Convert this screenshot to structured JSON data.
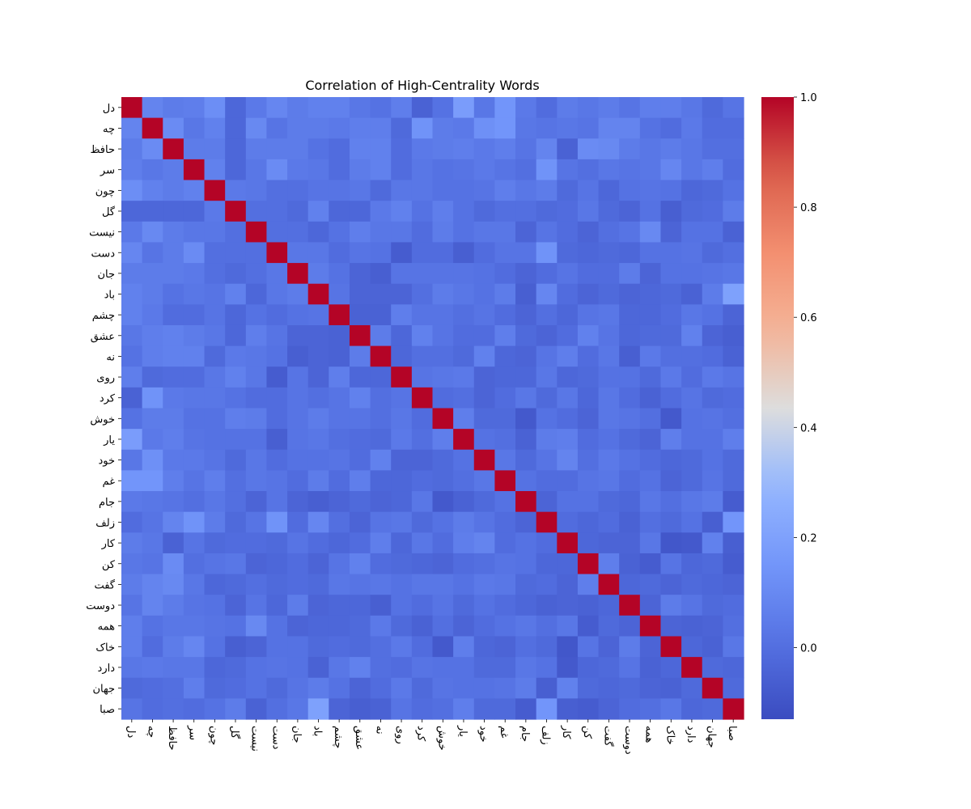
{
  "chart_data": {
    "type": "heatmap",
    "title": "Correlation of High-Centrality Words",
    "xlabel": "",
    "ylabel": "",
    "labels": [
      "دل",
      "چه",
      "حافظ",
      "سر",
      "چون",
      "گل",
      "نیست",
      "دست",
      "جان",
      "باد",
      "چشم",
      "عشق",
      "نه",
      "روی",
      "کرد",
      "خوش",
      "یار",
      "خود",
      "غم",
      "جام",
      "زلف",
      "کار",
      "کن",
      "گفت",
      "دوست",
      "همه",
      "خاک",
      "دارد",
      "جهان",
      "صبا"
    ],
    "colorbar": {
      "min": -0.13,
      "max": 1.0,
      "ticks": [
        "1.0",
        "0.8",
        "0.6",
        "0.4",
        "0.2",
        "0.0"
      ],
      "tick_values": [
        1.0,
        0.8,
        0.6,
        0.4,
        0.2,
        0.0
      ]
    },
    "colormap": "coolwarm",
    "matrix": [
      [
        1.0,
        0.08,
        0.05,
        0.06,
        0.12,
        -0.03,
        0.04,
        0.09,
        0.05,
        0.07,
        0.07,
        0.03,
        0.01,
        0.06,
        -0.05,
        0.01,
        0.18,
        0.03,
        0.15,
        0.04,
        -0.01,
        0.05,
        0.03,
        0.05,
        0.02,
        0.06,
        0.06,
        0.03,
        -0.02,
        0.02
      ],
      [
        0.08,
        1.0,
        0.11,
        0.03,
        0.07,
        -0.03,
        0.1,
        0.02,
        0.05,
        0.05,
        0.04,
        0.06,
        0.06,
        -0.02,
        0.14,
        0.05,
        0.04,
        0.13,
        0.15,
        0.03,
        0.02,
        0.03,
        0.02,
        0.08,
        0.08,
        0.01,
        -0.01,
        0.04,
        -0.01,
        -0.01
      ],
      [
        0.05,
        0.11,
        1.0,
        0.05,
        0.05,
        -0.03,
        0.05,
        0.05,
        0.05,
        0.01,
        -0.01,
        0.07,
        0.07,
        -0.01,
        0.04,
        0.05,
        0.06,
        0.04,
        0.06,
        0.02,
        0.08,
        -0.05,
        0.11,
        0.1,
        0.05,
        0.03,
        0.05,
        0.03,
        0.0,
        0.0
      ],
      [
        0.06,
        0.03,
        0.05,
        1.0,
        0.07,
        -0.03,
        0.03,
        0.11,
        0.04,
        0.03,
        -0.01,
        0.05,
        0.07,
        -0.01,
        0.03,
        0.01,
        0.02,
        0.04,
        0.02,
        0.0,
        0.14,
        0.02,
        0.0,
        0.03,
        0.02,
        0.03,
        0.09,
        0.03,
        0.06,
        -0.01
      ],
      [
        0.12,
        0.07,
        0.05,
        0.07,
        1.0,
        0.04,
        0.03,
        0.0,
        0.0,
        0.02,
        0.02,
        0.03,
        -0.02,
        0.03,
        0.03,
        0.01,
        0.01,
        0.02,
        0.06,
        0.03,
        0.05,
        -0.02,
        0.02,
        -0.03,
        0.01,
        0.02,
        0.01,
        -0.03,
        -0.02,
        0.01
      ],
      [
        -0.03,
        -0.03,
        -0.03,
        -0.03,
        0.04,
        1.0,
        0.0,
        0.0,
        -0.02,
        0.07,
        -0.03,
        -0.03,
        0.04,
        0.07,
        0.01,
        0.06,
        0.01,
        -0.02,
        0.0,
        0.0,
        -0.02,
        -0.01,
        0.03,
        -0.02,
        -0.04,
        0.01,
        -0.06,
        -0.02,
        -0.01,
        0.05
      ],
      [
        0.04,
        0.1,
        0.05,
        0.03,
        0.03,
        0.0,
        1.0,
        0.0,
        0.0,
        -0.03,
        0.01,
        0.06,
        0.03,
        0.03,
        -0.01,
        0.05,
        0.01,
        0.03,
        0.03,
        -0.04,
        0.02,
        -0.01,
        -0.04,
        0.0,
        0.02,
        0.1,
        -0.04,
        0.01,
        0.01,
        -0.05
      ],
      [
        0.09,
        0.02,
        0.05,
        0.11,
        0.0,
        0.0,
        0.0,
        1.0,
        0.03,
        0.03,
        -0.01,
        0.02,
        0.01,
        -0.07,
        -0.01,
        -0.01,
        -0.06,
        -0.01,
        0.02,
        0.02,
        0.14,
        -0.02,
        -0.03,
        -0.02,
        -0.03,
        0.01,
        0.01,
        0.02,
        -0.02,
        0.0
      ],
      [
        0.05,
        0.05,
        0.05,
        0.04,
        0.0,
        -0.02,
        0.0,
        0.03,
        1.0,
        0.05,
        0.01,
        -0.04,
        -0.06,
        0.02,
        0.02,
        0.02,
        0.02,
        0.01,
        -0.01,
        -0.04,
        -0.01,
        0.02,
        -0.01,
        -0.01,
        0.05,
        -0.04,
        0.01,
        0.01,
        0.02,
        0.03
      ],
      [
        0.07,
        0.05,
        0.01,
        0.03,
        0.02,
        0.07,
        -0.03,
        0.03,
        0.05,
        1.0,
        0.02,
        -0.04,
        -0.04,
        -0.04,
        0.0,
        0.05,
        0.03,
        0.01,
        0.05,
        -0.06,
        0.09,
        -0.01,
        -0.04,
        -0.02,
        -0.04,
        -0.03,
        -0.02,
        -0.05,
        0.05,
        0.2
      ],
      [
        0.07,
        0.04,
        -0.01,
        -0.01,
        0.02,
        -0.03,
        0.01,
        -0.01,
        0.01,
        0.02,
        1.0,
        -0.05,
        -0.05,
        0.06,
        0.02,
        0.02,
        0.0,
        0.02,
        -0.01,
        -0.04,
        0.0,
        -0.03,
        0.02,
        0.03,
        -0.03,
        -0.03,
        -0.01,
        0.03,
        0.01,
        -0.04
      ],
      [
        0.03,
        0.06,
        0.07,
        0.05,
        0.03,
        -0.03,
        0.06,
        0.02,
        -0.04,
        -0.04,
        -0.05,
        1.0,
        0.05,
        -0.03,
        0.07,
        0.02,
        -0.01,
        -0.01,
        0.06,
        -0.02,
        -0.04,
        -0.01,
        0.07,
        0.02,
        -0.03,
        -0.02,
        -0.02,
        0.07,
        -0.04,
        -0.06
      ],
      [
        0.01,
        0.06,
        0.07,
        0.07,
        -0.02,
        0.04,
        0.03,
        0.01,
        -0.06,
        -0.04,
        -0.05,
        0.05,
        1.0,
        -0.03,
        0.0,
        0.0,
        -0.02,
        0.07,
        -0.03,
        -0.04,
        0.02,
        0.06,
        -0.01,
        0.03,
        -0.06,
        0.04,
        0.0,
        0.0,
        -0.01,
        -0.05
      ],
      [
        0.06,
        -0.02,
        -0.01,
        -0.01,
        0.03,
        0.07,
        0.03,
        -0.07,
        0.02,
        -0.04,
        0.06,
        -0.03,
        -0.03,
        1.0,
        0.02,
        0.03,
        0.04,
        -0.04,
        -0.03,
        -0.03,
        0.03,
        -0.03,
        -0.02,
        0.01,
        0.01,
        -0.02,
        0.04,
        -0.01,
        0.04,
        0.02
      ],
      [
        -0.05,
        0.14,
        0.04,
        0.03,
        0.03,
        0.01,
        -0.01,
        -0.01,
        0.02,
        0.0,
        0.02,
        0.07,
        0.0,
        0.02,
        1.0,
        -0.01,
        0.0,
        -0.04,
        -0.01,
        0.03,
        -0.02,
        0.03,
        -0.03,
        0.03,
        -0.01,
        -0.05,
        -0.01,
        0.02,
        -0.02,
        -0.01
      ],
      [
        0.01,
        0.05,
        0.05,
        0.01,
        0.01,
        0.06,
        0.05,
        -0.01,
        0.02,
        0.05,
        0.02,
        0.02,
        0.0,
        0.03,
        -0.01,
        1.0,
        0.06,
        -0.02,
        -0.02,
        -0.08,
        0.01,
        -0.01,
        -0.04,
        0.03,
        0.02,
        0.0,
        -0.08,
        0.01,
        0.02,
        0.0
      ],
      [
        0.18,
        0.04,
        0.06,
        0.02,
        0.01,
        0.01,
        0.01,
        -0.06,
        0.02,
        0.03,
        0.0,
        -0.01,
        -0.02,
        0.04,
        0.0,
        0.06,
        1.0,
        0.01,
        0.0,
        -0.05,
        0.05,
        0.06,
        -0.01,
        0.01,
        -0.02,
        -0.04,
        0.06,
        0.01,
        0.01,
        0.06
      ],
      [
        0.03,
        0.13,
        0.04,
        0.04,
        0.02,
        -0.02,
        0.03,
        -0.01,
        0.01,
        0.01,
        0.02,
        -0.01,
        0.07,
        -0.04,
        -0.04,
        -0.02,
        0.01,
        1.0,
        0.03,
        -0.02,
        0.02,
        0.08,
        0.0,
        0.04,
        0.01,
        -0.01,
        -0.03,
        -0.02,
        0.01,
        -0.02
      ],
      [
        0.15,
        0.15,
        0.06,
        0.02,
        0.06,
        0.0,
        0.03,
        0.02,
        -0.01,
        0.05,
        -0.01,
        0.06,
        -0.03,
        -0.03,
        -0.01,
        -0.02,
        0.0,
        0.03,
        1.0,
        0.01,
        -0.01,
        -0.01,
        0.02,
        0.03,
        -0.01,
        0.01,
        -0.04,
        -0.02,
        0.02,
        -0.02
      ],
      [
        0.04,
        0.03,
        0.02,
        0.0,
        0.03,
        0.0,
        -0.04,
        0.02,
        -0.04,
        -0.06,
        -0.04,
        -0.02,
        -0.04,
        -0.03,
        0.03,
        -0.08,
        -0.05,
        -0.02,
        0.01,
        1.0,
        -0.04,
        0.01,
        0.01,
        -0.02,
        -0.03,
        0.03,
        0.0,
        0.03,
        0.05,
        -0.07
      ],
      [
        -0.01,
        0.02,
        0.08,
        0.14,
        0.05,
        -0.02,
        0.02,
        0.14,
        -0.01,
        0.09,
        0.0,
        -0.04,
        0.02,
        0.03,
        -0.02,
        0.01,
        0.05,
        0.02,
        -0.01,
        -0.04,
        1.0,
        -0.01,
        -0.03,
        -0.01,
        -0.05,
        0.0,
        -0.02,
        0.01,
        -0.06,
        0.15
      ],
      [
        0.05,
        0.03,
        -0.05,
        0.02,
        -0.02,
        -0.01,
        -0.01,
        -0.02,
        0.02,
        -0.01,
        -0.03,
        -0.01,
        0.06,
        -0.03,
        0.03,
        -0.01,
        0.06,
        0.08,
        -0.01,
        0.01,
        -0.01,
        1.0,
        -0.03,
        -0.04,
        -0.04,
        0.03,
        -0.09,
        -0.08,
        0.07,
        -0.06
      ],
      [
        0.03,
        0.02,
        0.11,
        0.0,
        0.02,
        0.03,
        -0.04,
        -0.03,
        -0.01,
        -0.04,
        0.02,
        0.07,
        -0.01,
        -0.02,
        -0.03,
        -0.04,
        -0.01,
        0.0,
        0.02,
        0.01,
        -0.03,
        -0.03,
        1.0,
        0.06,
        -0.05,
        -0.07,
        0.02,
        -0.03,
        -0.02,
        -0.07
      ],
      [
        0.05,
        0.08,
        0.1,
        0.03,
        -0.03,
        -0.02,
        0.0,
        -0.02,
        -0.01,
        -0.02,
        0.03,
        0.02,
        0.03,
        0.01,
        0.03,
        0.03,
        0.01,
        0.04,
        0.03,
        -0.02,
        -0.01,
        -0.04,
        0.06,
        1.0,
        -0.03,
        -0.02,
        -0.04,
        -0.02,
        -0.03,
        -0.04
      ],
      [
        0.02,
        0.08,
        0.05,
        0.02,
        0.01,
        -0.04,
        0.02,
        -0.03,
        0.05,
        -0.04,
        -0.03,
        -0.03,
        -0.06,
        0.01,
        -0.01,
        0.02,
        -0.02,
        0.01,
        -0.01,
        -0.03,
        -0.05,
        -0.04,
        -0.05,
        -0.03,
        1.0,
        -0.04,
        0.05,
        0.02,
        -0.02,
        -0.01
      ],
      [
        0.06,
        0.01,
        0.03,
        0.03,
        0.02,
        0.01,
        0.1,
        0.01,
        -0.04,
        -0.03,
        -0.03,
        -0.02,
        0.04,
        -0.02,
        -0.05,
        0.0,
        -0.04,
        -0.01,
        0.01,
        0.03,
        0.0,
        0.03,
        -0.07,
        -0.02,
        -0.04,
        1.0,
        -0.04,
        -0.05,
        -0.04,
        0.0
      ],
      [
        0.06,
        -0.01,
        0.05,
        0.09,
        0.01,
        -0.06,
        -0.04,
        0.01,
        0.01,
        -0.02,
        -0.01,
        -0.02,
        0.0,
        0.04,
        -0.01,
        -0.08,
        0.06,
        -0.03,
        -0.04,
        0.0,
        -0.02,
        -0.09,
        0.02,
        -0.04,
        0.05,
        -0.04,
        1.0,
        -0.03,
        -0.05,
        0.03
      ],
      [
        0.03,
        0.04,
        0.03,
        0.03,
        -0.03,
        -0.02,
        0.01,
        0.02,
        0.01,
        -0.05,
        0.03,
        0.07,
        0.0,
        -0.01,
        0.02,
        0.01,
        0.01,
        -0.02,
        -0.02,
        0.03,
        0.01,
        -0.08,
        -0.03,
        -0.02,
        0.02,
        -0.05,
        -0.03,
        1.0,
        -0.02,
        -0.03
      ],
      [
        -0.02,
        -0.01,
        0.0,
        0.06,
        -0.02,
        -0.01,
        0.01,
        -0.02,
        0.02,
        0.05,
        0.01,
        -0.04,
        -0.01,
        0.04,
        -0.02,
        0.02,
        0.01,
        0.01,
        0.02,
        0.05,
        -0.06,
        0.07,
        -0.02,
        -0.03,
        -0.02,
        -0.04,
        -0.05,
        -0.02,
        1.0,
        -0.02
      ],
      [
        0.02,
        -0.01,
        0.0,
        -0.01,
        0.01,
        0.05,
        -0.05,
        0.0,
        0.03,
        0.2,
        -0.04,
        -0.06,
        -0.05,
        0.02,
        -0.01,
        0.0,
        0.06,
        -0.02,
        -0.02,
        -0.07,
        0.15,
        -0.06,
        -0.07,
        -0.04,
        -0.01,
        0.0,
        0.03,
        -0.03,
        -0.02,
        1.0
      ]
    ]
  }
}
